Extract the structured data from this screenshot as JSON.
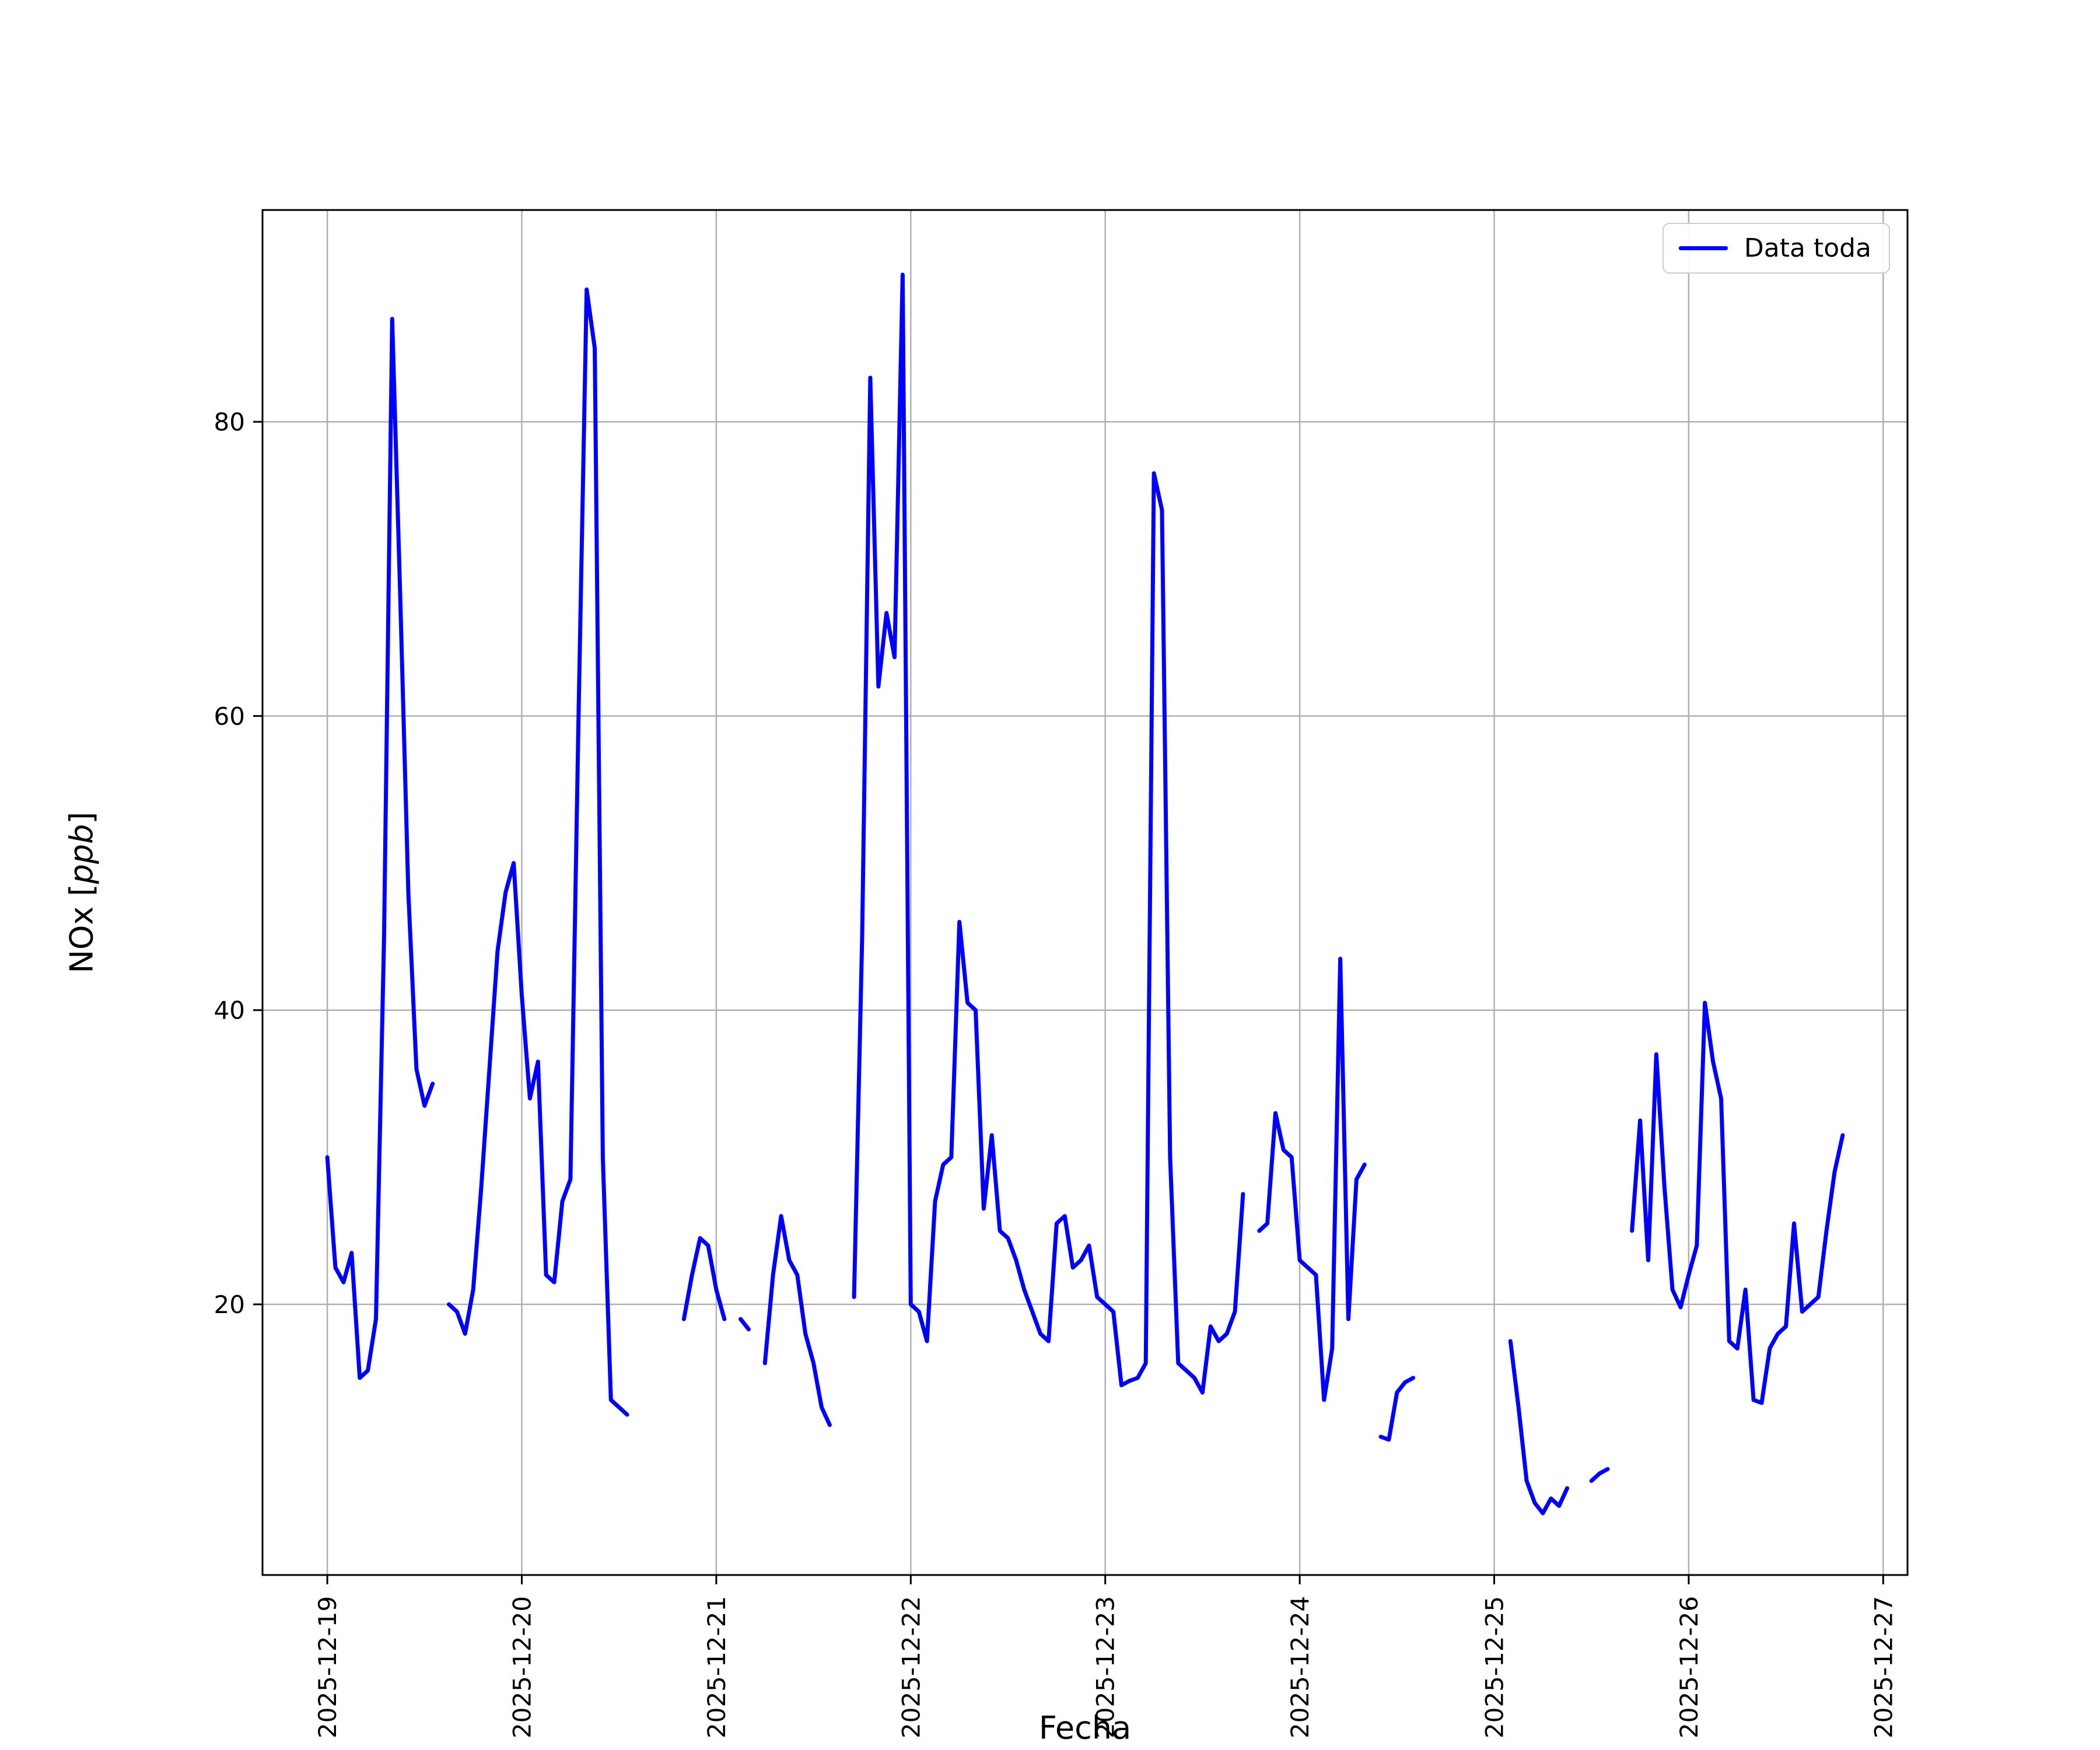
{
  "chart_data": {
    "type": "line",
    "title": "",
    "xlabel": "Fecha",
    "ylabel": "NOx [ppb]",
    "ylabel_parts": {
      "prefix": "NOx [",
      "math": "ppb",
      "suffix": "]"
    },
    "legend_position": "upper right",
    "legend": [
      {
        "label": "Data toda",
        "color": "#0000ff"
      }
    ],
    "grid": true,
    "grid_color": "#b0b0b0",
    "line_color": "#0000ff",
    "background_color": "#ffffff",
    "x_tick_labels": [
      "2025-12-19",
      "2025-12-20",
      "2025-12-21",
      "2025-12-22",
      "2025-12-23",
      "2025-12-24",
      "2025-12-25",
      "2025-12-26",
      "2025-12-27"
    ],
    "x_tick_hours": [
      0,
      24,
      48,
      72,
      96,
      120,
      144,
      168,
      192
    ],
    "y_ticks": [
      20,
      40,
      60,
      80
    ],
    "xlim_hours": [
      -8,
      195
    ],
    "ylim": [
      1.6,
      94.4
    ],
    "series": [
      {
        "name": "Data toda",
        "x_unit": "hours since 2025-12-19 00:00",
        "x_step_hours": 1,
        "values": [
          30,
          22.5,
          21.5,
          23.5,
          15,
          15.5,
          19,
          45,
          87,
          68,
          48,
          36,
          33.5,
          35,
          null,
          20,
          19.5,
          18,
          21,
          28,
          36,
          44,
          48,
          50,
          41,
          34,
          36.5,
          22,
          21.5,
          27,
          28.5,
          60,
          89,
          85,
          30,
          13.5,
          13,
          12.5,
          null,
          null,
          null,
          null,
          null,
          null,
          19,
          22,
          24.5,
          24,
          21,
          19,
          null,
          19,
          18.3,
          null,
          16,
          22,
          26,
          23,
          22,
          18,
          16,
          13,
          11.8,
          null,
          null,
          20.5,
          45,
          83,
          62,
          67,
          64,
          90,
          20,
          19.5,
          17.5,
          27,
          29.5,
          30,
          46,
          40.5,
          40,
          26.5,
          31.5,
          25,
          24.5,
          23,
          21,
          19.5,
          18,
          17.5,
          25.5,
          26,
          22.5,
          23,
          24,
          20.5,
          20,
          19.5,
          14.5,
          14.8,
          15,
          16,
          76.5,
          74,
          30,
          16,
          15.5,
          15,
          14,
          18.5,
          17.5,
          18,
          19.5,
          27.5,
          null,
          25,
          25.5,
          33,
          30.5,
          30,
          23,
          22.5,
          22,
          13.5,
          17,
          43.5,
          19,
          28.5,
          29.5,
          null,
          11,
          10.8,
          14,
          14.7,
          15,
          null,
          null,
          null,
          null,
          null,
          null,
          null,
          null,
          null,
          null,
          null,
          17.5,
          13,
          8,
          6.5,
          5.8,
          6.8,
          6.3,
          7.5,
          null,
          null,
          8,
          8.5,
          8.8,
          null,
          null,
          25,
          32.5,
          23,
          37,
          28,
          21,
          19.8,
          22,
          24,
          40.5,
          36.5,
          34,
          17.5,
          17,
          21,
          13.5,
          13.3,
          17,
          18,
          18.5,
          25.5,
          19.5,
          20,
          20.5,
          25,
          29,
          31.5,
          null,
          null,
          null,
          null
        ]
      }
    ]
  }
}
